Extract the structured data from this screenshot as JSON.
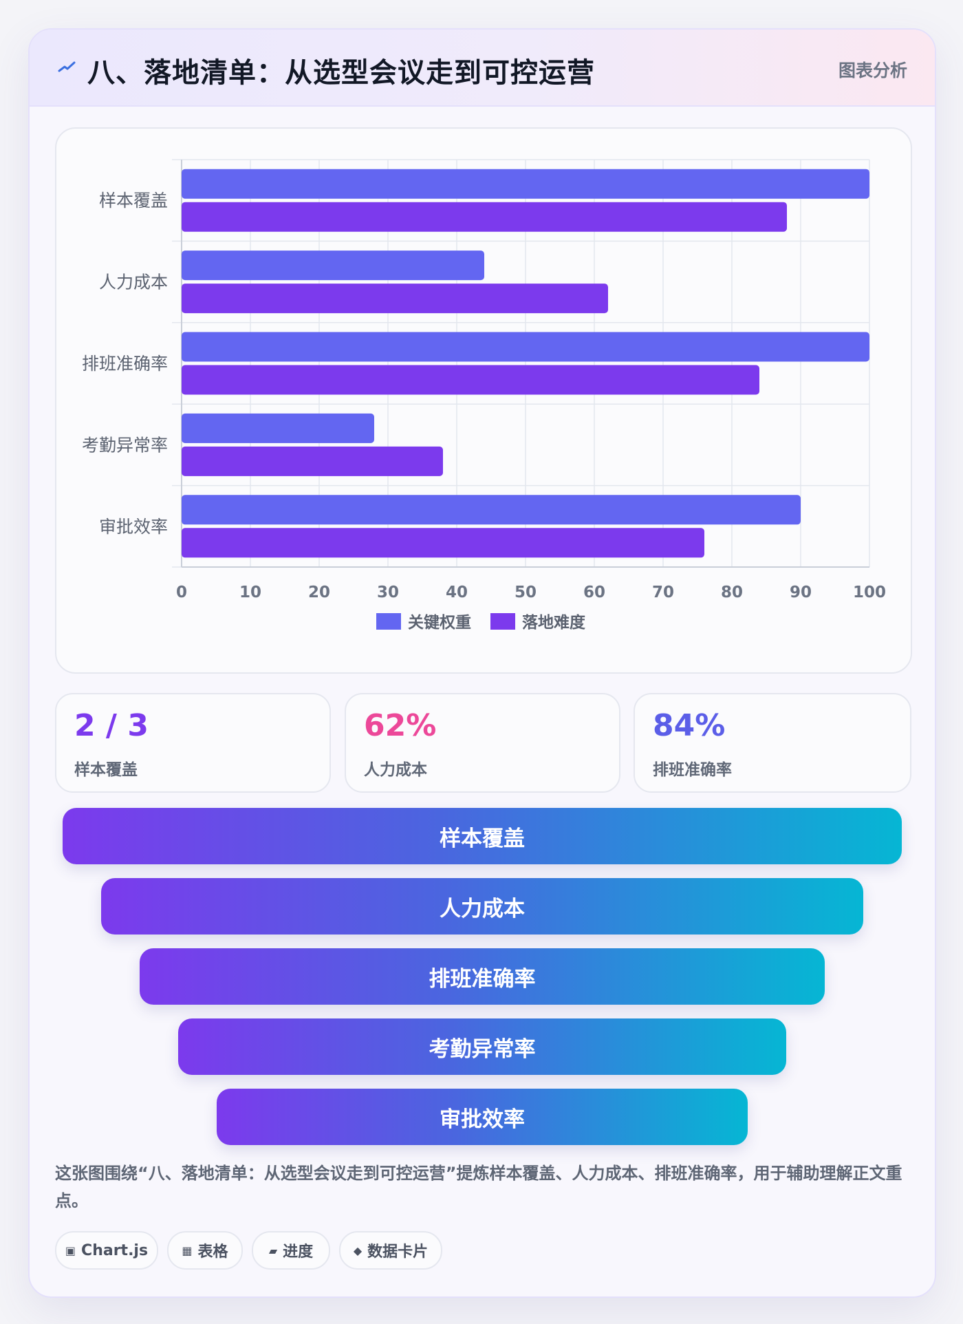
{
  "header": {
    "title": "八、落地清单：从选型会议走到可控运营",
    "tag": "图表分析"
  },
  "chart_data": {
    "type": "bar",
    "orientation": "horizontal",
    "categories": [
      "样本覆盖",
      "人力成本",
      "排班准确率",
      "考勤异常率",
      "审批效率"
    ],
    "series": [
      {
        "name": "关键权重",
        "values": [
          100,
          44,
          100,
          28,
          90
        ],
        "color": "#6366f1"
      },
      {
        "name": "落地难度",
        "values": [
          88,
          62,
          84,
          38,
          76
        ],
        "color": "#7c3aed"
      }
    ],
    "xlim": [
      0,
      100
    ],
    "xticks": [
      "0",
      "10",
      "20",
      "30",
      "40",
      "50",
      "60",
      "70",
      "80",
      "90",
      "100"
    ],
    "grid": true,
    "legend": "bottom"
  },
  "stats": [
    {
      "value": "2 / 3",
      "label": "样本覆盖",
      "color": "#7c3aed"
    },
    {
      "value": "62%",
      "label": "人力成本",
      "color": "#ec4899"
    },
    {
      "value": "84%",
      "label": "排班准确率",
      "color": "#5b5ee8"
    }
  ],
  "funnel": [
    "样本覆盖",
    "人力成本",
    "排班准确率",
    "考勤异常率",
    "审批效率"
  ],
  "description": "这张图围绕“八、落地清单：从选型会议走到可控运营”提炼样本覆盖、人力成本、排班准确率，用于辅助理解正文重点。",
  "chips": [
    {
      "icon": "▣",
      "label": "Chart.js"
    },
    {
      "icon": "▦",
      "label": "表格"
    },
    {
      "icon": "▰",
      "label": "进度"
    },
    {
      "icon": "◆",
      "label": "数据卡片"
    }
  ],
  "colors": {
    "accent": "#6366f1",
    "secondary": "#7c3aed",
    "pink": "#ec4899",
    "funnel_start": "#7c3aed",
    "funnel_end": "#06b6d4"
  }
}
